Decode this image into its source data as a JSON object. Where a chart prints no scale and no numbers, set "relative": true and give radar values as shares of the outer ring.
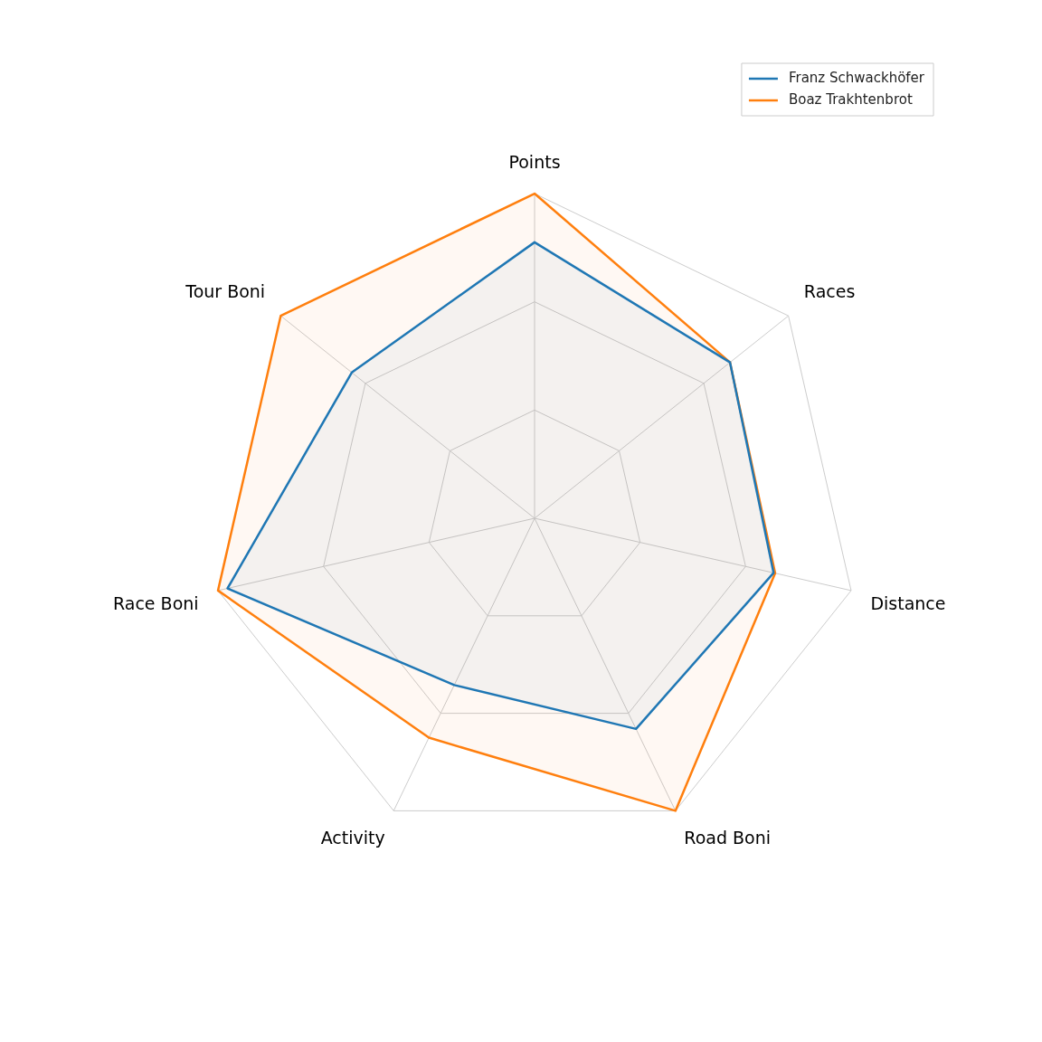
{
  "chart_data": {
    "type": "radar",
    "relative": true,
    "categories": [
      "Points",
      "Races",
      "Distance",
      "Road Boni",
      "Activity",
      "Race Boni",
      "Tour Boni"
    ],
    "series": [
      {
        "name": "Franz Schwackhöfer",
        "color": "#1f77b4",
        "values": [
          0.85,
          0.77,
          0.755,
          0.72,
          0.57,
          0.97,
          0.72
        ]
      },
      {
        "name": "Boaz Trakhtenbrot",
        "color": "#ff7f0e",
        "values": [
          1.0,
          0.77,
          0.76,
          1.0,
          0.75,
          1.0,
          1.0
        ]
      }
    ],
    "grid": true,
    "legend": "top right",
    "marker": "none",
    "line_style": "solid"
  }
}
